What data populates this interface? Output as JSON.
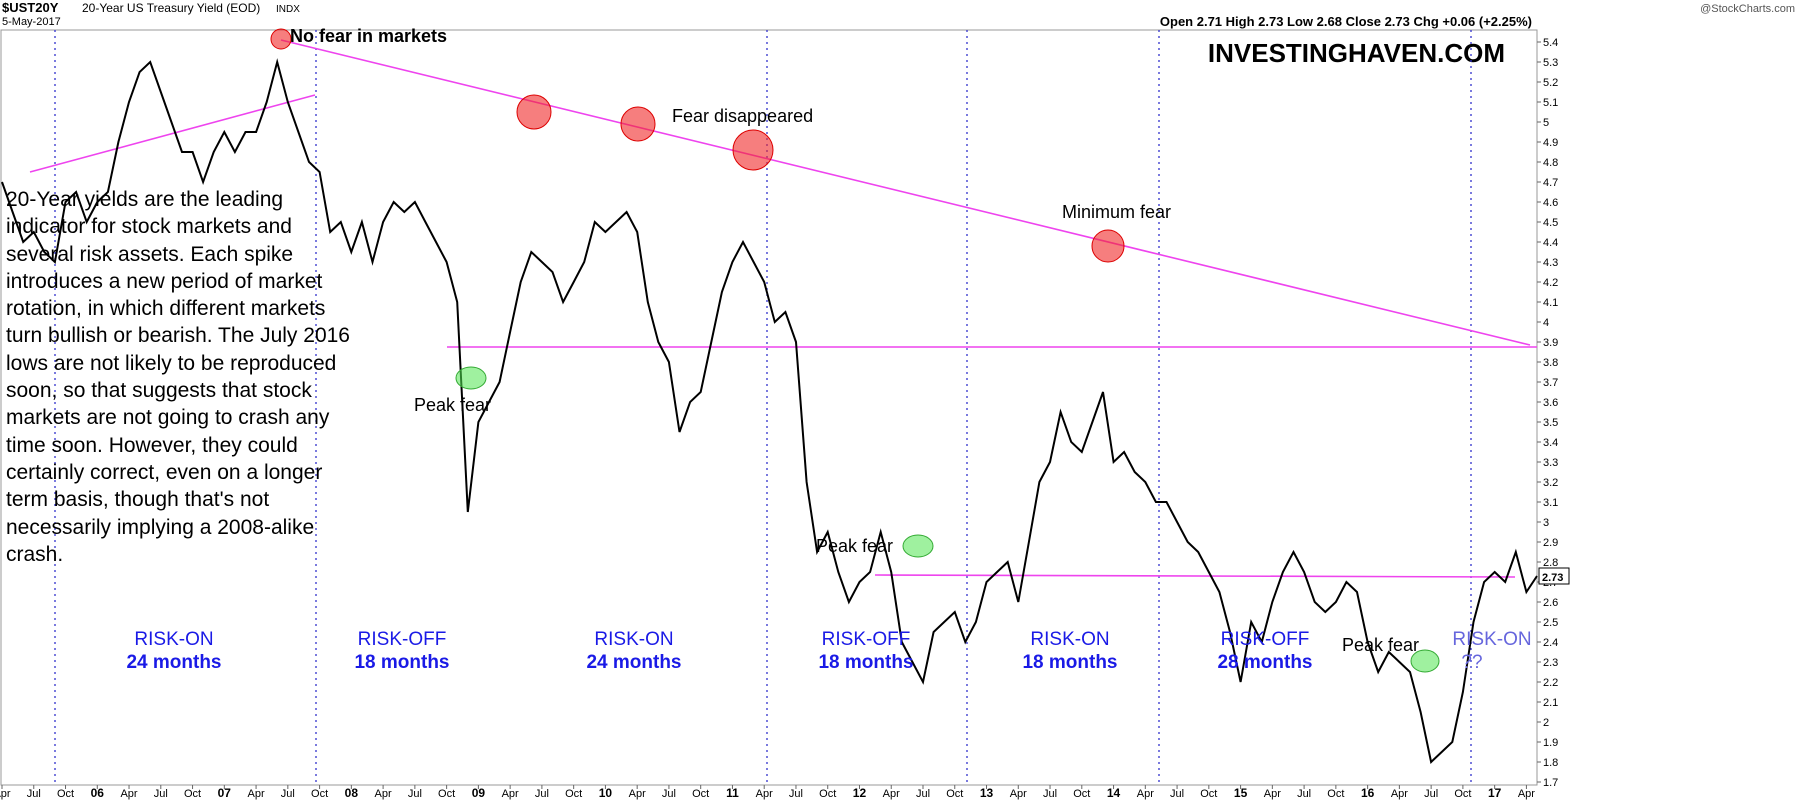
{
  "chart_data": {
    "type": "line",
    "title": "$UST20Y",
    "subtitle": "20-Year US Treasury Yield (EOD)",
    "exchange": "INDX",
    "date": "5-May-2017",
    "source": "@StockCharts.com",
    "quote": "Open 2.71 High 2.73 Low 2.68 Close 2.73 Chg +0.06 (+2.25%)",
    "watermark": "INVESTINGHAVEN.COM",
    "last_label": "2.73",
    "description": "20-Year yields are the leading indicator for stock markets and several risk assets. Each spike introduces a new period of market rotation, in which different markets turn bullish or bearish. The July 2016 lows are not likely to be reproduced soon, so that suggests that stock markets are not going to crash any time soon. However, they could certainly correct, even on a longer term basis, though that's not necessarily implying a 2008-alike crash.",
    "annotations": [
      "No fear in markets",
      "Fear disappeared",
      "Minimum fear",
      "Peak fear",
      "Peak fear",
      "Peak fear"
    ],
    "regimes": [
      {
        "label": "RISK-ON",
        "duration": "24 months"
      },
      {
        "label": "RISK-OFF",
        "duration": "18 months"
      },
      {
        "label": "RISK-ON",
        "duration": "24 months"
      },
      {
        "label": "RISK-OFF",
        "duration": "18 months"
      },
      {
        "label": "RISK-ON",
        "duration": "18 months"
      },
      {
        "label": "RISK-OFF",
        "duration": "28 months"
      },
      {
        "label": "RISK-ON",
        "duration": "??"
      }
    ],
    "xlim": [
      "2005-04",
      "2017-05"
    ],
    "ylim": [
      1.685,
      5.46
    ],
    "yticks": [
      1.7,
      1.8,
      1.9,
      2.0,
      2.1,
      2.2,
      2.3,
      2.4,
      2.5,
      2.6,
      2.7,
      2.8,
      2.9,
      3.0,
      3.1,
      3.2,
      3.3,
      3.4,
      3.5,
      3.6,
      3.7,
      3.8,
      3.9,
      4.0,
      4.1,
      4.2,
      4.3,
      4.4,
      4.5,
      4.6,
      4.7,
      4.8,
      4.9,
      5.0,
      5.1,
      5.2,
      5.3,
      5.4
    ],
    "xticks": [
      {
        "value": "2005-04",
        "label": "Apr"
      },
      {
        "value": "2005-07",
        "label": "Jul"
      },
      {
        "value": "2005-10",
        "label": "Oct"
      },
      {
        "value": "2006-01",
        "label": "06"
      },
      {
        "value": "2006-04",
        "label": "Apr"
      },
      {
        "value": "2006-07",
        "label": "Jul"
      },
      {
        "value": "2006-10",
        "label": "Oct"
      },
      {
        "value": "2007-01",
        "label": "07"
      },
      {
        "value": "2007-04",
        "label": "Apr"
      },
      {
        "value": "2007-07",
        "label": "Jul"
      },
      {
        "value": "2007-10",
        "label": "Oct"
      },
      {
        "value": "2008-01",
        "label": "08"
      },
      {
        "value": "2008-04",
        "label": "Apr"
      },
      {
        "value": "2008-07",
        "label": "Jul"
      },
      {
        "value": "2008-10",
        "label": "Oct"
      },
      {
        "value": "2009-01",
        "label": "09"
      },
      {
        "value": "2009-04",
        "label": "Apr"
      },
      {
        "value": "2009-07",
        "label": "Jul"
      },
      {
        "value": "2009-10",
        "label": "Oct"
      },
      {
        "value": "2010-01",
        "label": "10"
      },
      {
        "value": "2010-04",
        "label": "Apr"
      },
      {
        "value": "2010-07",
        "label": "Jul"
      },
      {
        "value": "2010-10",
        "label": "Oct"
      },
      {
        "value": "2011-01",
        "label": "11"
      },
      {
        "value": "2011-04",
        "label": "Apr"
      },
      {
        "value": "2011-07",
        "label": "Jul"
      },
      {
        "value": "2011-10",
        "label": "Oct"
      },
      {
        "value": "2012-01",
        "label": "12"
      },
      {
        "value": "2012-04",
        "label": "Apr"
      },
      {
        "value": "2012-07",
        "label": "Jul"
      },
      {
        "value": "2012-10",
        "label": "Oct"
      },
      {
        "value": "2013-01",
        "label": "13"
      },
      {
        "value": "2013-04",
        "label": "Apr"
      },
      {
        "value": "2013-07",
        "label": "Jul"
      },
      {
        "value": "2013-10",
        "label": "Oct"
      },
      {
        "value": "2014-01",
        "label": "14"
      },
      {
        "value": "2014-04",
        "label": "Apr"
      },
      {
        "value": "2014-07",
        "label": "Jul"
      },
      {
        "value": "2014-10",
        "label": "Oct"
      },
      {
        "value": "2015-01",
        "label": "15"
      },
      {
        "value": "2015-04",
        "label": "Apr"
      },
      {
        "value": "2015-07",
        "label": "Jul"
      },
      {
        "value": "2015-10",
        "label": "Oct"
      },
      {
        "value": "2016-01",
        "label": "16"
      },
      {
        "value": "2016-04",
        "label": "Apr"
      },
      {
        "value": "2016-07",
        "label": "Jul"
      },
      {
        "value": "2016-10",
        "label": "Oct"
      },
      {
        "value": "2017-01",
        "label": "17"
      },
      {
        "value": "2017-04",
        "label": "Apr"
      }
    ],
    "color": "#000000",
    "x": [
      "2005-04",
      "2005-05",
      "2005-06",
      "2005-07",
      "2005-08",
      "2005-09",
      "2005-10",
      "2005-11",
      "2005-12",
      "2006-01",
      "2006-02",
      "2006-03",
      "2006-04",
      "2006-05",
      "2006-06",
      "2006-07",
      "2006-08",
      "2006-09",
      "2006-10",
      "2006-11",
      "2006-12",
      "2007-01",
      "2007-02",
      "2007-03",
      "2007-04",
      "2007-05",
      "2007-06",
      "2007-07",
      "2007-08",
      "2007-09",
      "2007-10",
      "2007-11",
      "2007-12",
      "2008-01",
      "2008-02",
      "2008-03",
      "2008-04",
      "2008-05",
      "2008-06",
      "2008-07",
      "2008-08",
      "2008-09",
      "2008-10",
      "2008-11",
      "2008-12",
      "2009-01",
      "2009-02",
      "2009-03",
      "2009-04",
      "2009-05",
      "2009-06",
      "2009-07",
      "2009-08",
      "2009-09",
      "2009-10",
      "2009-11",
      "2009-12",
      "2010-01",
      "2010-02",
      "2010-03",
      "2010-04",
      "2010-05",
      "2010-06",
      "2010-07",
      "2010-08",
      "2010-09",
      "2010-10",
      "2010-11",
      "2010-12",
      "2011-01",
      "2011-02",
      "2011-03",
      "2011-04",
      "2011-05",
      "2011-06",
      "2011-07",
      "2011-08",
      "2011-09",
      "2011-10",
      "2011-11",
      "2011-12",
      "2012-01",
      "2012-02",
      "2012-03",
      "2012-04",
      "2012-05",
      "2012-06",
      "2012-07",
      "2012-08",
      "2012-09",
      "2012-10",
      "2012-11",
      "2012-12",
      "2013-01",
      "2013-02",
      "2013-03",
      "2013-04",
      "2013-05",
      "2013-06",
      "2013-07",
      "2013-08",
      "2013-09",
      "2013-10",
      "2013-11",
      "2013-12",
      "2014-01",
      "2014-02",
      "2014-03",
      "2014-04",
      "2014-05",
      "2014-06",
      "2014-07",
      "2014-08",
      "2014-09",
      "2014-10",
      "2014-11",
      "2014-12",
      "2015-01",
      "2015-02",
      "2015-03",
      "2015-04",
      "2015-05",
      "2015-06",
      "2015-07",
      "2015-08",
      "2015-09",
      "2015-10",
      "2015-11",
      "2015-12",
      "2016-01",
      "2016-02",
      "2016-03",
      "2016-04",
      "2016-05",
      "2016-06",
      "2016-07",
      "2016-08",
      "2016-09",
      "2016-10",
      "2016-11",
      "2016-12",
      "2017-01",
      "2017-02",
      "2017-03",
      "2017-04",
      "2017-05"
    ],
    "values": [
      4.7,
      4.55,
      4.4,
      4.45,
      4.35,
      4.3,
      4.6,
      4.65,
      4.5,
      4.6,
      4.65,
      4.9,
      5.1,
      5.25,
      5.3,
      5.15,
      5.0,
      4.85,
      4.85,
      4.7,
      4.85,
      4.95,
      4.85,
      4.95,
      4.95,
      5.1,
      5.3,
      5.1,
      4.95,
      4.8,
      4.75,
      4.45,
      4.5,
      4.35,
      4.5,
      4.3,
      4.5,
      4.6,
      4.55,
      4.6,
      4.5,
      4.4,
      4.3,
      4.1,
      3.05,
      3.5,
      3.6,
      3.7,
      3.95,
      4.2,
      4.35,
      4.3,
      4.25,
      4.1,
      4.2,
      4.3,
      4.5,
      4.45,
      4.5,
      4.55,
      4.45,
      4.1,
      3.9,
      3.8,
      3.45,
      3.6,
      3.65,
      3.9,
      4.15,
      4.3,
      4.4,
      4.3,
      4.2,
      4.0,
      4.05,
      3.9,
      3.2,
      2.85,
      2.95,
      2.75,
      2.6,
      2.7,
      2.75,
      2.95,
      2.75,
      2.4,
      2.3,
      2.2,
      2.45,
      2.5,
      2.55,
      2.4,
      2.5,
      2.7,
      2.75,
      2.8,
      2.6,
      2.9,
      3.2,
      3.3,
      3.55,
      3.4,
      3.35,
      3.5,
      3.65,
      3.3,
      3.35,
      3.25,
      3.2,
      3.1,
      3.1,
      3.0,
      2.9,
      2.85,
      2.75,
      2.65,
      2.45,
      2.2,
      2.5,
      2.4,
      2.6,
      2.75,
      2.85,
      2.75,
      2.6,
      2.55,
      2.6,
      2.7,
      2.65,
      2.4,
      2.25,
      2.35,
      2.3,
      2.25,
      2.05,
      1.8,
      1.85,
      1.9,
      2.15,
      2.5,
      2.7,
      2.75,
      2.7,
      2.85,
      2.65,
      2.73
    ]
  }
}
